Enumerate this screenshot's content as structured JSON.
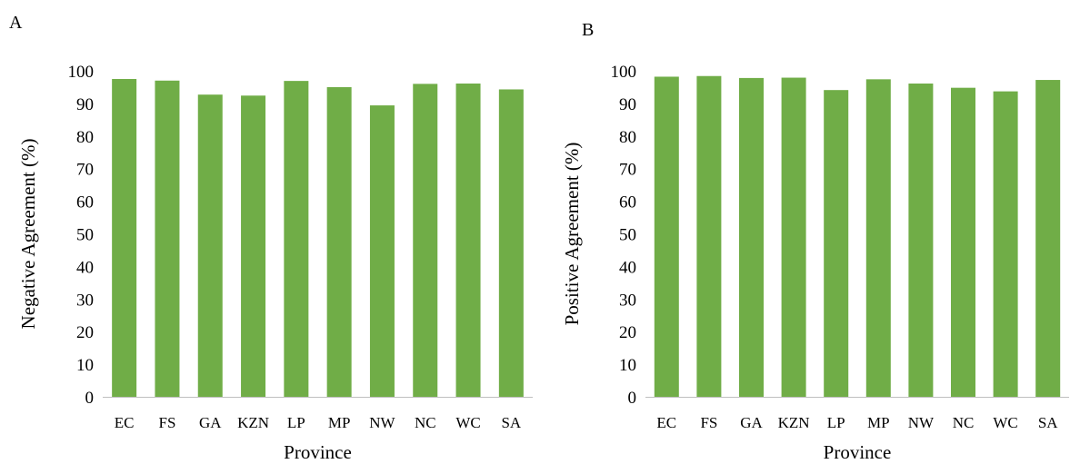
{
  "panels": {
    "a_label": "A",
    "b_label": "B"
  },
  "colors": {
    "bar": "#70ad47",
    "axis": "#bfbfbf"
  },
  "chart_data": [
    {
      "type": "bar",
      "panel": "A",
      "categories": [
        "EC",
        "FS",
        "GA",
        "KZN",
        "LP",
        "MP",
        "NW",
        "NC",
        "WC",
        "SA"
      ],
      "values": [
        97.5,
        97.0,
        92.7,
        92.4,
        96.9,
        95.0,
        89.4,
        96.0,
        96.1,
        94.3
      ],
      "xlabel": "Province",
      "ylabel": "Negative Agreement (%)",
      "ylim": [
        0,
        100
      ],
      "yticks": [
        0,
        10,
        20,
        30,
        40,
        50,
        60,
        70,
        80,
        90,
        100
      ],
      "grid": false,
      "legend": "none"
    },
    {
      "type": "bar",
      "panel": "B",
      "categories": [
        "EC",
        "FS",
        "GA",
        "KZN",
        "LP",
        "MP",
        "NW",
        "NC",
        "WC",
        "SA"
      ],
      "values": [
        98.2,
        98.4,
        97.8,
        97.9,
        94.1,
        97.4,
        96.1,
        94.8,
        93.7,
        97.2
      ],
      "xlabel": "Province",
      "ylabel": "Positive Agreement (%)",
      "ylim": [
        0,
        100
      ],
      "yticks": [
        0,
        10,
        20,
        30,
        40,
        50,
        60,
        70,
        80,
        90,
        100
      ],
      "grid": false,
      "legend": "none"
    }
  ]
}
